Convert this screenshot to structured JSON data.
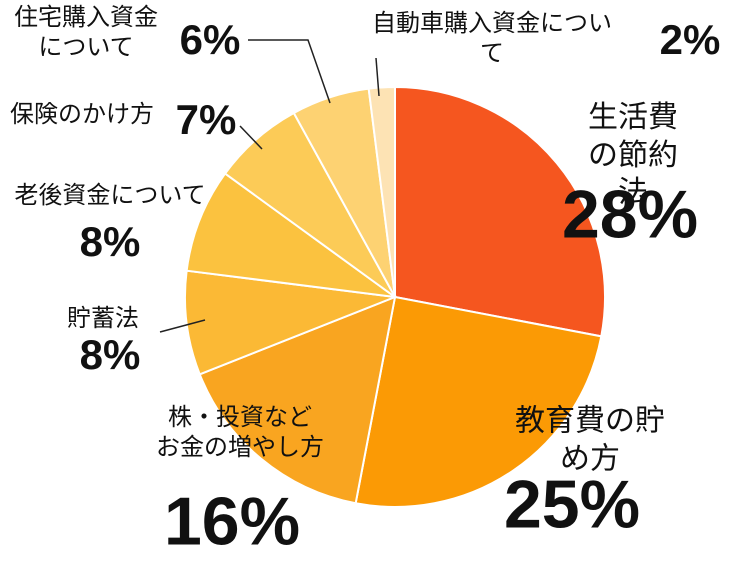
{
  "chart_data": {
    "type": "pie",
    "categories": [
      "生活費の節約法",
      "教育費の貯め方",
      "株・投資など\nお金の増やし方",
      "貯蓄法",
      "老後資金について",
      "保険のかけ方",
      "住宅購入資金\nについて",
      "自動車購入資金について"
    ],
    "values": [
      28,
      25,
      16,
      8,
      8,
      7,
      6,
      2
    ],
    "value_labels": [
      "28%",
      "25%",
      "16%",
      "8%",
      "8%",
      "7%",
      "6%",
      "2%"
    ],
    "colors": [
      "#f5561f",
      "#fb9a05",
      "#f9a520",
      "#fbb935",
      "#fbc23f",
      "#fccb57",
      "#fdd272",
      "#fde3b4"
    ]
  }
}
